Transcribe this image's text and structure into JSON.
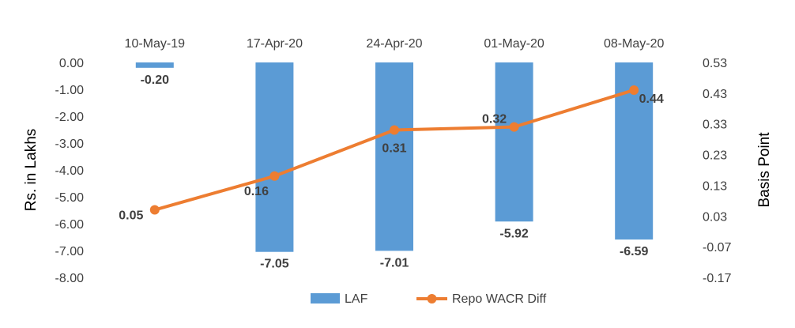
{
  "chart_data": {
    "type": "bar",
    "categories": [
      "10-May-19",
      "17-Apr-20",
      "24-Apr-20",
      "01-May-20",
      "08-May-20"
    ],
    "series": [
      {
        "name": "LAF",
        "type": "bar",
        "axis": "left",
        "values": [
          -0.2,
          -7.05,
          -7.01,
          -5.92,
          -6.59
        ],
        "labels": [
          "-0.20",
          "-7.05",
          "-7.01",
          "-5.92",
          "-6.59"
        ],
        "color": "#5B9BD5"
      },
      {
        "name": "Repo WACR Diff",
        "type": "line",
        "axis": "right",
        "values": [
          0.05,
          0.16,
          0.31,
          0.32,
          0.44
        ],
        "labels": [
          "0.05",
          "0.16",
          "0.31",
          "0.32",
          "0.44"
        ],
        "color": "#ED7D31"
      }
    ],
    "y_left": {
      "label": "Rs. in Lakhs",
      "range": [
        -8.0,
        0.0
      ],
      "ticks": [
        "0.00",
        "-1.00",
        "-2.00",
        "-3.00",
        "-4.00",
        "-5.00",
        "-6.00",
        "-7.00",
        "-8.00"
      ]
    },
    "y_right": {
      "label": "Basis Point",
      "range": [
        -0.17,
        0.53
      ],
      "ticks": [
        "0.53",
        "0.43",
        "0.33",
        "0.23",
        "0.13",
        "0.03",
        "-0.07",
        "-0.17"
      ]
    },
    "x_axis_position": "top",
    "grid": false,
    "legend": "bottom-center"
  }
}
